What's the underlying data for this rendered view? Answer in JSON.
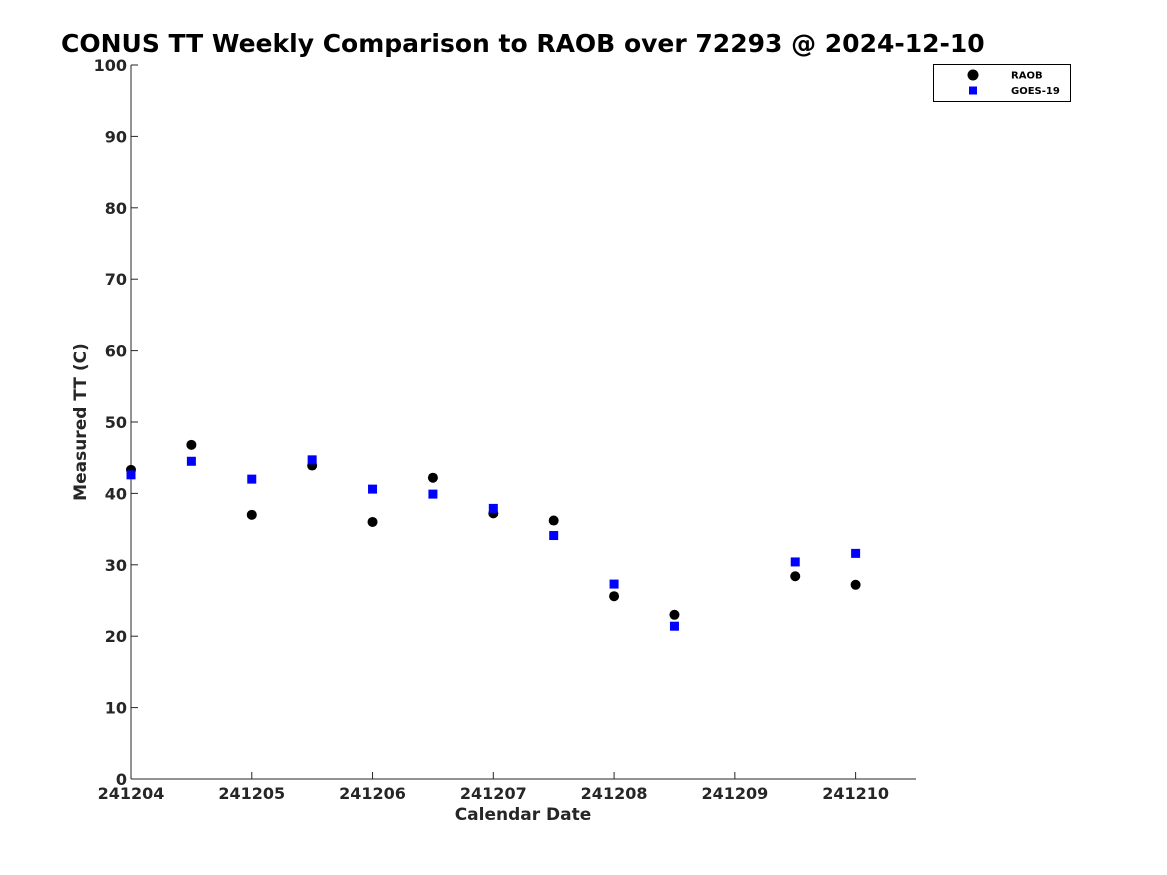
{
  "chart_data": {
    "type": "scatter",
    "title": "CONUS TT Weekly Comparison to RAOB over 72293 @ 2024-12-10",
    "xlabel": "Calendar Date",
    "ylabel": "Measured TT (C)",
    "xlim": [
      241204,
      241210.5
    ],
    "ylim": [
      0,
      100
    ],
    "x_ticks": [
      241204,
      241205,
      241206,
      241207,
      241208,
      241209,
      241210
    ],
    "x_tick_labels": [
      "241204",
      "241205",
      "241206",
      "241207",
      "241208",
      "241209",
      "241210"
    ],
    "y_ticks": [
      0,
      10,
      20,
      30,
      40,
      50,
      60,
      70,
      80,
      90,
      100
    ],
    "y_tick_labels": [
      "0",
      "10",
      "20",
      "30",
      "40",
      "50",
      "60",
      "70",
      "80",
      "90",
      "100"
    ],
    "grid": false,
    "legend_position": "top-right",
    "series": [
      {
        "name": "RAOB",
        "marker": "circle",
        "color": "#000000",
        "x": [
          241204,
          241204.5,
          241205,
          241205.5,
          241206,
          241206.5,
          241207,
          241207.5,
          241208,
          241208.5,
          241209.5,
          241210
        ],
        "y": [
          43.3,
          46.8,
          37.0,
          43.9,
          36.0,
          42.2,
          37.2,
          36.2,
          25.6,
          23.0,
          28.4,
          27.2
        ]
      },
      {
        "name": "GOES-19",
        "marker": "square",
        "color": "#0000ff",
        "x": [
          241204,
          241204.5,
          241205,
          241205.5,
          241206,
          241206.5,
          241207,
          241207.5,
          241208,
          241208.5,
          241209.5,
          241210
        ],
        "y": [
          42.6,
          44.5,
          42.0,
          44.7,
          40.6,
          39.9,
          37.9,
          34.1,
          27.3,
          21.4,
          30.4,
          31.6
        ]
      }
    ]
  }
}
